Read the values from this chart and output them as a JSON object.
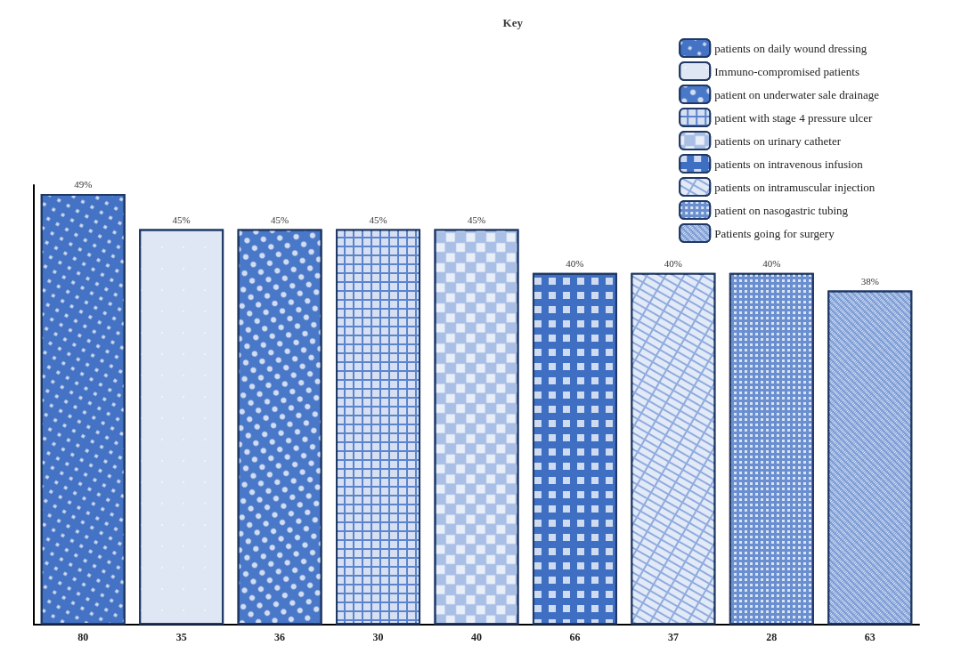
{
  "chart_data": {
    "type": "bar",
    "legend_title": "Key",
    "legend": "top right",
    "grid": false,
    "categories": [
      "80",
      "35",
      "36",
      "30",
      "40",
      "66",
      "37",
      "28",
      "63"
    ],
    "series": [
      {
        "name": "patients on daily wound dressing",
        "color": "#4472c4",
        "values": [
          49,
          null,
          null,
          null,
          null,
          null,
          null,
          null,
          null
        ],
        "value_labels": [
          "49%",
          null,
          null,
          null,
          null,
          null,
          null,
          null,
          null
        ]
      },
      {
        "name": "Immuno-compromised patients",
        "color": "#dfe7f5",
        "values": [
          null,
          45,
          null,
          null,
          null,
          null,
          null,
          null,
          null
        ],
        "value_labels": [
          null,
          "45%",
          null,
          null,
          null,
          null,
          null,
          null,
          null
        ]
      },
      {
        "name": "patient on underwater sale drainage",
        "color": "#4a78c8",
        "values": [
          null,
          null,
          45,
          null,
          null,
          null,
          null,
          null,
          null
        ],
        "value_labels": [
          null,
          null,
          "45%",
          null,
          null,
          null,
          null,
          null,
          null
        ]
      },
      {
        "name": "patient with stage 4 pressure ulcer",
        "color": "#5b84cc",
        "values": [
          null,
          null,
          null,
          45,
          null,
          null,
          null,
          null,
          null
        ],
        "value_labels": [
          null,
          null,
          null,
          "45%",
          null,
          null,
          null,
          null,
          null
        ]
      },
      {
        "name": "patients on urinary catheter",
        "color": "#a9bfe6",
        "values": [
          null,
          null,
          null,
          null,
          45,
          null,
          null,
          null,
          null
        ],
        "value_labels": [
          null,
          null,
          null,
          null,
          "45%",
          null,
          null,
          null,
          null
        ]
      },
      {
        "name": "patients on intravenous infusion",
        "color": "#3f6fc2",
        "values": [
          null,
          null,
          null,
          null,
          null,
          40,
          null,
          null,
          null
        ],
        "value_labels": [
          null,
          null,
          null,
          null,
          null,
          "40%",
          null,
          null,
          null
        ]
      },
      {
        "name": "patients on intramuscular injection",
        "color": "#8fabdf",
        "values": [
          null,
          null,
          null,
          null,
          null,
          null,
          40,
          null,
          null
        ],
        "value_labels": [
          null,
          null,
          null,
          null,
          null,
          null,
          "40%",
          null,
          null
        ]
      },
      {
        "name": "patient on nasogastric tubing",
        "color": "#6a8fd0",
        "values": [
          null,
          null,
          null,
          null,
          null,
          null,
          null,
          40,
          null
        ],
        "value_labels": [
          null,
          null,
          null,
          null,
          null,
          null,
          null,
          "40%",
          null
        ]
      },
      {
        "name": "Patients going for surgery",
        "color": "#7b9cd6",
        "values": [
          null,
          null,
          null,
          null,
          null,
          null,
          null,
          null,
          38
        ],
        "value_labels": [
          null,
          null,
          null,
          null,
          null,
          null,
          null,
          null,
          "38%"
        ]
      }
    ]
  }
}
